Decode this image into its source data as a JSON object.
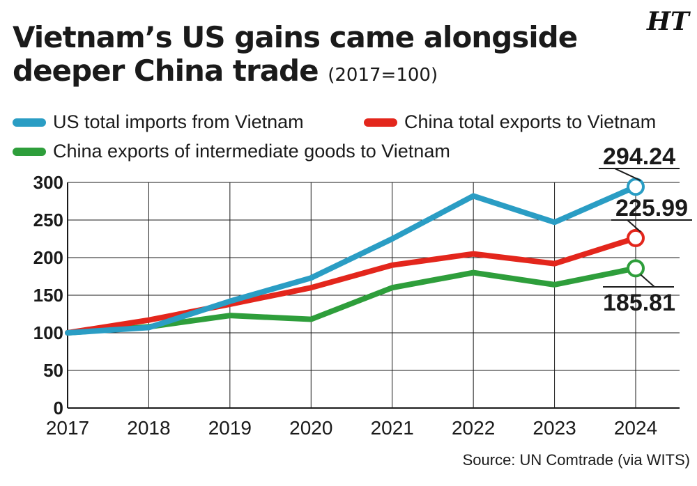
{
  "header": {
    "title_line1": "Vietnam’s US gains came alongside",
    "title_line2": "deeper China trade",
    "subtitle": "(2017=100)",
    "logo": "HT"
  },
  "source": "Source: UN Comtrade (via WITS)",
  "colors": {
    "us": "#2a9dc4",
    "china_total": "#e3261c",
    "china_inter": "#2e9e3b",
    "grid": "#1a1a1a"
  },
  "chart_data": {
    "type": "line",
    "x": [
      "2017",
      "2018",
      "2019",
      "2020",
      "2021",
      "2022",
      "2023",
      "2024"
    ],
    "ylim": [
      0,
      300
    ],
    "yticks": [
      0,
      50,
      100,
      150,
      200,
      250,
      300
    ],
    "grid": true,
    "legend": "top",
    "series": [
      {
        "name": "US total imports from Vietnam",
        "key": "us",
        "values": [
          100,
          107,
          142,
          173,
          225,
          282,
          247,
          294.24
        ]
      },
      {
        "name": "China total exports to Vietnam",
        "key": "china_total",
        "values": [
          100,
          117,
          138,
          160,
          190,
          205,
          192,
          225.99
        ]
      },
      {
        "name": "China exports of intermediate goods to Vietnam",
        "key": "china_inter",
        "values": [
          100,
          108,
          123,
          118,
          160,
          180,
          164,
          185.81
        ]
      }
    ],
    "annotations": [
      {
        "series": "us",
        "text": "294.24"
      },
      {
        "series": "china_total",
        "text": "225.99"
      },
      {
        "series": "china_inter",
        "text": "185.81"
      }
    ]
  }
}
